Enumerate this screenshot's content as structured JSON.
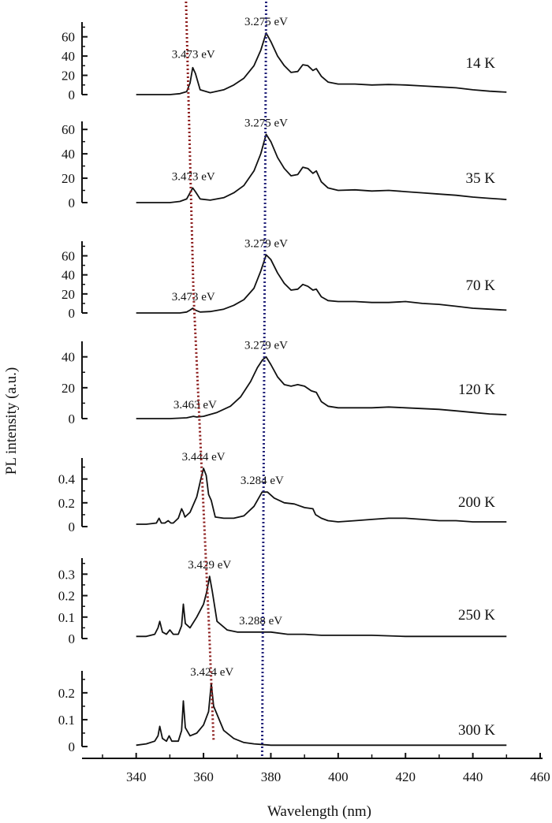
{
  "chart_data": {
    "type": "line",
    "xlabel": "Wavelength (nm)",
    "ylabel": "PL intensity (a.u.)",
    "xlim": [
      330,
      460
    ],
    "x_ticks": [
      "340",
      "360",
      "380",
      "400",
      "420",
      "440",
      "460"
    ],
    "colors": {
      "curve": "#111111",
      "guide_red": "#8b1a1a",
      "guide_blue": "#23237a"
    },
    "guides": {
      "red_x": [
        354.8,
        357.0,
        361.7,
        363.0
      ],
      "blue_x": [
        378.6,
        377.4
      ]
    },
    "panels": [
      {
        "temperature": "14 K",
        "ylim": [
          0,
          72
        ],
        "y_ticks": [
          "0",
          "20",
          "40",
          "60"
        ],
        "peak_labels": [
          {
            "text": "3.473 eV",
            "x": 357,
            "y": 30
          },
          {
            "text": "3.275 eV",
            "x": 378.6,
            "y": 64
          }
        ],
        "x": [
          340,
          350,
          353,
          355,
          356,
          356.8,
          357.6,
          359,
          362,
          366,
          369,
          372,
          375,
          377,
          378.6,
          380,
          382,
          384,
          386,
          388,
          389.5,
          391,
          392.5,
          393.5,
          395,
          397,
          400,
          405,
          410,
          415,
          420,
          425,
          430,
          435,
          440,
          445,
          450
        ],
        "y": [
          0,
          0,
          1,
          3,
          12,
          28,
          22,
          5,
          2,
          5,
          10,
          17,
          30,
          46,
          64,
          55,
          40,
          30,
          23,
          24,
          31,
          30,
          25,
          27,
          19,
          13,
          11,
          11,
          10,
          10.5,
          10,
          9,
          8,
          7,
          5,
          3.5,
          2.5
        ]
      },
      {
        "temperature": "35 K",
        "ylim": [
          0,
          64
        ],
        "y_ticks": [
          "0",
          "20",
          "40",
          "60"
        ],
        "peak_labels": [
          {
            "text": "3.473 eV",
            "x": 357,
            "y": 12
          },
          {
            "text": "3.275 eV",
            "x": 378.6,
            "y": 56
          }
        ],
        "x": [
          340,
          350,
          353,
          355,
          356,
          356.8,
          357.6,
          359,
          362,
          366,
          369,
          372,
          375,
          377,
          378.6,
          380,
          382,
          384,
          386,
          388,
          389.5,
          391,
          392.5,
          393.5,
          395,
          397,
          400,
          405,
          410,
          415,
          420,
          425,
          430,
          435,
          440,
          445,
          450
        ],
        "y": [
          0,
          0,
          1,
          3,
          8,
          12,
          9,
          3,
          2,
          4,
          8,
          14,
          26,
          40,
          56,
          50,
          37,
          28,
          22,
          23,
          29,
          28,
          24,
          26,
          17,
          12,
          10,
          10.5,
          9.5,
          10,
          9,
          8,
          7,
          6,
          4.5,
          3.5,
          2.5
        ]
      },
      {
        "temperature": "70 K",
        "ylim": [
          0,
          72
        ],
        "y_ticks": [
          "0",
          "20",
          "40",
          "60"
        ],
        "peak_labels": [
          {
            "text": "3.473 eV",
            "x": 357,
            "y": 5
          },
          {
            "text": "3.279 eV",
            "x": 378.6,
            "y": 61
          }
        ],
        "x": [
          340,
          350,
          353,
          355,
          356,
          356.8,
          357.6,
          359,
          362,
          366,
          369,
          372,
          375,
          377,
          378.6,
          380,
          382,
          384,
          386,
          388,
          389.5,
          391,
          392.5,
          393.5,
          395,
          397,
          400,
          405,
          410,
          415,
          420,
          425,
          430,
          435,
          440,
          445,
          450
        ],
        "y": [
          0,
          0,
          0,
          1,
          3,
          5,
          3,
          1,
          1.5,
          4,
          8,
          14,
          26,
          44,
          61,
          56,
          42,
          31,
          24,
          25,
          30,
          28,
          24,
          25,
          17,
          13,
          12,
          12,
          11,
          11,
          12,
          10,
          9,
          7,
          5,
          4,
          3
        ]
      },
      {
        "temperature": "120 K",
        "ylim": [
          0,
          48
        ],
        "y_ticks": [
          "0",
          "20",
          "40"
        ],
        "peak_labels": [
          {
            "text": "3.463 eV",
            "x": 357.5,
            "y": 1.5
          },
          {
            "text": "3.279 eV",
            "x": 378.6,
            "y": 40
          }
        ],
        "x": [
          340,
          350,
          355,
          357,
          358,
          360,
          364,
          368,
          371,
          374,
          376,
          377.5,
          378.6,
          380,
          382,
          384,
          386,
          388,
          390,
          392,
          393.5,
          395,
          397,
          400,
          405,
          410,
          415,
          420,
          425,
          430,
          435,
          440,
          445,
          450
        ],
        "y": [
          0,
          0,
          0.5,
          1.5,
          1,
          1.5,
          4,
          8,
          14,
          24,
          33,
          38,
          40,
          35,
          27,
          22,
          21,
          22,
          21,
          18,
          17,
          11,
          8,
          7,
          7,
          7,
          7.5,
          7,
          6.5,
          6,
          5,
          4,
          3,
          2.5
        ]
      },
      {
        "temperature": "200 K",
        "ylim": [
          0,
          0.55
        ],
        "y_ticks": [
          "0",
          "0.2",
          "0.4"
        ],
        "peak_labels": [
          {
            "text": "3.444 eV",
            "x": 360,
            "y": 0.49
          },
          {
            "text": "3.284 eV",
            "x": 377.4,
            "y": 0.29
          }
        ],
        "x": [
          340,
          343,
          346,
          346.8,
          347.5,
          348.5,
          349.5,
          350.3,
          351,
          352.5,
          353.5,
          354,
          354.5,
          356,
          358,
          359.2,
          360,
          360.8,
          361.5,
          362.3,
          363.5,
          366,
          369,
          372,
          375,
          377.4,
          379,
          381,
          384,
          387,
          390,
          392.5,
          393.3,
          395,
          397,
          400,
          405,
          410,
          415,
          420,
          425,
          430,
          435,
          440,
          445,
          450
        ],
        "y": [
          0.02,
          0.02,
          0.03,
          0.07,
          0.03,
          0.03,
          0.05,
          0.03,
          0.03,
          0.07,
          0.15,
          0.12,
          0.08,
          0.12,
          0.25,
          0.4,
          0.49,
          0.43,
          0.27,
          0.22,
          0.08,
          0.07,
          0.07,
          0.09,
          0.17,
          0.29,
          0.29,
          0.24,
          0.2,
          0.19,
          0.16,
          0.15,
          0.1,
          0.07,
          0.05,
          0.04,
          0.05,
          0.06,
          0.07,
          0.07,
          0.06,
          0.05,
          0.05,
          0.04,
          0.04,
          0.04
        ]
      },
      {
        "temperature": "250 K",
        "ylim": [
          0,
          0.36
        ],
        "y_ticks": [
          "0",
          "0.1",
          "0.2",
          "0.3"
        ],
        "peak_labels": [
          {
            "text": "3.429 eV",
            "x": 361.8,
            "y": 0.29
          },
          {
            "text": "3.288 eV",
            "x": 377,
            "y": 0.03
          }
        ],
        "x": [
          340,
          343,
          345.5,
          346.5,
          347,
          347.8,
          349,
          350,
          351,
          352.5,
          353.5,
          354,
          354.6,
          356,
          358,
          360,
          361,
          361.8,
          362.6,
          364,
          367,
          370,
          373,
          377,
          380,
          385,
          390,
          395,
          400,
          410,
          420,
          430,
          440,
          450
        ],
        "y": [
          0.01,
          0.01,
          0.02,
          0.05,
          0.08,
          0.03,
          0.02,
          0.04,
          0.02,
          0.02,
          0.06,
          0.16,
          0.07,
          0.05,
          0.1,
          0.16,
          0.22,
          0.29,
          0.22,
          0.08,
          0.04,
          0.03,
          0.03,
          0.03,
          0.03,
          0.02,
          0.02,
          0.015,
          0.015,
          0.015,
          0.01,
          0.01,
          0.01,
          0.01
        ]
      },
      {
        "temperature": "300 K",
        "ylim": [
          0,
          0.27
        ],
        "y_ticks": [
          "0",
          "0.1",
          "0.2"
        ],
        "peak_labels": [
          {
            "text": "3.424 eV",
            "x": 362.5,
            "y": 0.235
          }
        ],
        "x": [
          340,
          343,
          345.5,
          346.5,
          347,
          347.8,
          349,
          349.8,
          350.6,
          352.5,
          353.5,
          354,
          354.6,
          356,
          358,
          360,
          361.5,
          362.3,
          363,
          364,
          366,
          369,
          372,
          375,
          380,
          385,
          390,
          400,
          410,
          420,
          430,
          440,
          450
        ],
        "y": [
          0.005,
          0.01,
          0.02,
          0.04,
          0.075,
          0.03,
          0.02,
          0.04,
          0.02,
          0.02,
          0.06,
          0.17,
          0.07,
          0.04,
          0.05,
          0.08,
          0.13,
          0.235,
          0.15,
          0.12,
          0.06,
          0.03,
          0.015,
          0.01,
          0.005,
          0.005,
          0.005,
          0.005,
          0.005,
          0.005,
          0.005,
          0.005,
          0.005
        ]
      }
    ]
  }
}
